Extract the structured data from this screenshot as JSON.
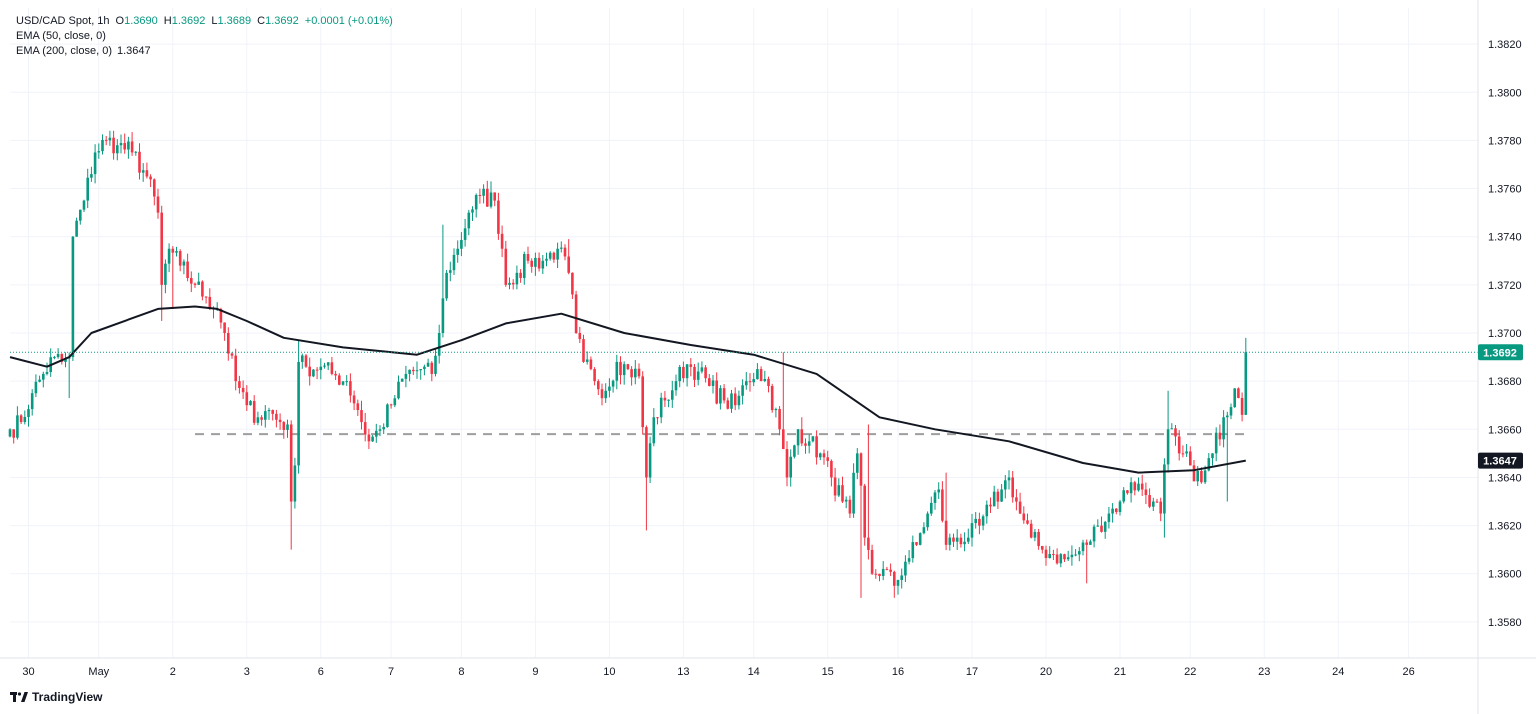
{
  "legend": {
    "symbol": "USD/CAD Spot, 1h",
    "open_label": "O",
    "open": "1.3690",
    "high_label": "H",
    "high": "1.3692",
    "low_label": "L",
    "low": "1.3689",
    "close_label": "C",
    "close": "1.3692",
    "change": "+0.0001 (+0.01%)",
    "ema50_label": "EMA (50, close, 0)",
    "ema200_label": "EMA (200, close, 0)",
    "ema200_value": "1.3647"
  },
  "brand": "TradingView",
  "chart_data": {
    "type": "candlestick",
    "ylim": [
      1.3565,
      1.3835
    ],
    "y_ticks": [
      "1.3580",
      "1.3600",
      "1.3620",
      "1.3640",
      "1.3660",
      "1.3680",
      "1.3700",
      "1.3720",
      "1.3740",
      "1.3760",
      "1.3780",
      "1.3800",
      "1.3820"
    ],
    "x_ticks": [
      {
        "label": "30",
        "i": 5
      },
      {
        "label": "May",
        "i": 24
      },
      {
        "label": "2",
        "i": 44
      },
      {
        "label": "3",
        "i": 64
      },
      {
        "label": "6",
        "i": 84
      },
      {
        "label": "7",
        "i": 103
      },
      {
        "label": "8",
        "i": 122
      },
      {
        "label": "9",
        "i": 142
      },
      {
        "label": "10",
        "i": 162
      },
      {
        "label": "13",
        "i": 182
      },
      {
        "label": "14",
        "i": 201
      },
      {
        "label": "15",
        "i": 221
      },
      {
        "label": "16",
        "i": 240
      },
      {
        "label": "17",
        "i": 260
      },
      {
        "label": "20",
        "i": 280
      },
      {
        "label": "21",
        "i": 300
      },
      {
        "label": "22",
        "i": 319
      },
      {
        "label": "23",
        "i": 339
      },
      {
        "label": "24",
        "i": 359
      },
      {
        "label": "26",
        "i": 378
      }
    ],
    "n_bars": 335,
    "last_price": "1.3692",
    "ema200_value": "1.3647",
    "support_level": 1.3658,
    "support_from_i": 50,
    "colors": {
      "up": "#089981",
      "down": "#f23645",
      "ema": "#131722",
      "support": "#9e9e9e"
    },
    "anchors": [
      [
        0,
        1.366
      ],
      [
        3,
        1.3663
      ],
      [
        6,
        1.3675
      ],
      [
        9,
        1.3683
      ],
      [
        12,
        1.369
      ],
      [
        14,
        1.3688
      ],
      [
        16,
        1.369
      ],
      [
        17,
        1.374
      ],
      [
        20,
        1.3755
      ],
      [
        23,
        1.3775
      ],
      [
        26,
        1.378
      ],
      [
        29,
        1.3778
      ],
      [
        33,
        1.3775
      ],
      [
        37,
        1.3765
      ],
      [
        40,
        1.375
      ],
      [
        41,
        1.372
      ],
      [
        43,
        1.3735
      ],
      [
        46,
        1.3728
      ],
      [
        50,
        1.372
      ],
      [
        53,
        1.3715
      ],
      [
        56,
        1.371
      ],
      [
        58,
        1.37
      ],
      [
        61,
        1.368
      ],
      [
        64,
        1.367
      ],
      [
        67,
        1.3665
      ],
      [
        70,
        1.3668
      ],
      [
        73,
        1.3663
      ],
      [
        75,
        1.3662
      ],
      [
        76,
        1.363
      ],
      [
        77,
        1.3645
      ],
      [
        78,
        1.3688
      ],
      [
        80,
        1.3686
      ],
      [
        84,
        1.3686
      ],
      [
        87,
        1.3683
      ],
      [
        91,
        1.368
      ],
      [
        94,
        1.3668
      ],
      [
        97,
        1.3655
      ],
      [
        100,
        1.366
      ],
      [
        103,
        1.367
      ],
      [
        107,
        1.3683
      ],
      [
        111,
        1.3685
      ],
      [
        114,
        1.3683
      ],
      [
        116,
        1.37
      ],
      [
        118,
        1.3725
      ],
      [
        121,
        1.3735
      ],
      [
        124,
        1.375
      ],
      [
        127,
        1.3757
      ],
      [
        131,
        1.3755
      ],
      [
        133,
        1.3735
      ],
      [
        134,
        1.372
      ],
      [
        137,
        1.3725
      ],
      [
        140,
        1.373
      ],
      [
        144,
        1.373
      ],
      [
        148,
        1.3735
      ],
      [
        151,
        1.3725
      ],
      [
        153,
        1.37
      ],
      [
        155,
        1.3688
      ],
      [
        158,
        1.368
      ],
      [
        161,
        1.3676
      ],
      [
        164,
        1.3688
      ],
      [
        167,
        1.3685
      ],
      [
        170,
        1.3682
      ],
      [
        172,
        1.364
      ],
      [
        174,
        1.3665
      ],
      [
        177,
        1.3672
      ],
      [
        180,
        1.368
      ],
      [
        183,
        1.3687
      ],
      [
        186,
        1.3684
      ],
      [
        189,
        1.3678
      ],
      [
        193,
        1.3672
      ],
      [
        196,
        1.367
      ],
      [
        199,
        1.368
      ],
      [
        202,
        1.3685
      ],
      [
        205,
        1.3678
      ],
      [
        208,
        1.366
      ],
      [
        210,
        1.364
      ],
      [
        213,
        1.366
      ],
      [
        216,
        1.3655
      ],
      [
        219,
        1.365
      ],
      [
        222,
        1.364
      ],
      [
        225,
        1.363
      ],
      [
        227,
        1.3625
      ],
      [
        229,
        1.365
      ],
      [
        231,
        1.3615
      ],
      [
        233,
        1.36
      ],
      [
        236,
        1.3602
      ],
      [
        239,
        1.3595
      ],
      [
        242,
        1.3605
      ],
      [
        245,
        1.3612
      ],
      [
        248,
        1.3625
      ],
      [
        251,
        1.3635
      ],
      [
        253,
        1.3612
      ],
      [
        256,
        1.3615
      ],
      [
        259,
        1.3615
      ],
      [
        262,
        1.362
      ],
      [
        265,
        1.3628
      ],
      [
        268,
        1.3635
      ],
      [
        270,
        1.364
      ],
      [
        273,
        1.3625
      ],
      [
        276,
        1.3615
      ],
      [
        279,
        1.361
      ],
      [
        282,
        1.3608
      ],
      [
        285,
        1.3606
      ],
      [
        288,
        1.3608
      ],
      [
        291,
        1.3612
      ],
      [
        294,
        1.362
      ],
      [
        297,
        1.3625
      ],
      [
        300,
        1.363
      ],
      [
        303,
        1.3638
      ],
      [
        306,
        1.3635
      ],
      [
        309,
        1.363
      ],
      [
        311,
        1.3625
      ],
      [
        313,
        1.366
      ],
      [
        316,
        1.365
      ],
      [
        319,
        1.3645
      ],
      [
        322,
        1.3638
      ],
      [
        325,
        1.365
      ],
      [
        328,
        1.3665
      ],
      [
        331,
        1.3677
      ],
      [
        332,
        1.3673
      ],
      [
        333,
        1.3666
      ],
      [
        334,
        1.3692
      ]
    ],
    "spikes": [
      [
        16,
        1.3673
      ],
      [
        27,
        1.3784
      ],
      [
        41,
        1.3705
      ],
      [
        44,
        1.371
      ],
      [
        76,
        1.361
      ],
      [
        78,
        1.3697
      ],
      [
        117,
        1.3745
      ],
      [
        130,
        1.3763
      ],
      [
        151,
        1.3739
      ],
      [
        172,
        1.3618
      ],
      [
        209,
        1.3692
      ],
      [
        214,
        1.3665
      ],
      [
        230,
        1.359
      ],
      [
        232,
        1.3662
      ],
      [
        239,
        1.359
      ],
      [
        253,
        1.3642
      ],
      [
        270,
        1.3643
      ],
      [
        291,
        1.3596
      ],
      [
        313,
        1.3676
      ],
      [
        312,
        1.3615
      ],
      [
        329,
        1.363
      ],
      [
        334,
        1.3698
      ]
    ],
    "ema_points": [
      [
        1.369,
        0
      ],
      [
        1.3686,
        10
      ],
      [
        1.369,
        16
      ],
      [
        1.37,
        22
      ],
      [
        1.371,
        40
      ],
      [
        1.3711,
        50
      ],
      [
        1.371,
        56
      ],
      [
        1.3705,
        64
      ],
      [
        1.3698,
        74
      ],
      [
        1.3694,
        90
      ],
      [
        1.3691,
        110
      ],
      [
        1.3697,
        122
      ],
      [
        1.3704,
        134
      ],
      [
        1.3708,
        149
      ],
      [
        1.37,
        166
      ],
      [
        1.3695,
        184
      ],
      [
        1.3691,
        201
      ],
      [
        1.3683,
        218
      ],
      [
        1.3665,
        235
      ],
      [
        1.366,
        250
      ],
      [
        1.3655,
        270
      ],
      [
        1.3646,
        290
      ],
      [
        1.3642,
        305
      ],
      [
        1.3643,
        320
      ],
      [
        1.3647,
        334
      ]
    ]
  }
}
